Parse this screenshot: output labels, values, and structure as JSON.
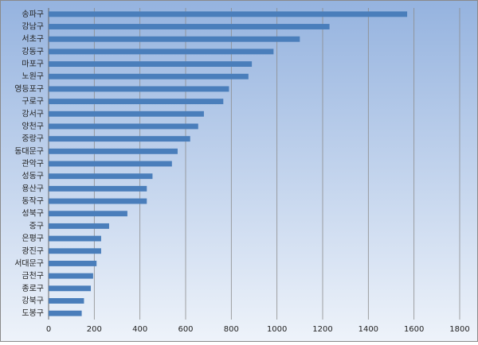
{
  "chart_data": {
    "type": "bar",
    "orientation": "horizontal",
    "categories": [
      "송파구",
      "강남구",
      "서초구",
      "강동구",
      "마포구",
      "노원구",
      "영등포구",
      "구로구",
      "강서구",
      "양천구",
      "중랑구",
      "동대문구",
      "관악구",
      "성동구",
      "용산구",
      "동작구",
      "성북구",
      "중구",
      "은평구",
      "광진구",
      "서대문구",
      "금천구",
      "종로구",
      "강북구",
      "도봉구"
    ],
    "values": [
      1570,
      1230,
      1100,
      985,
      890,
      875,
      790,
      765,
      680,
      655,
      620,
      565,
      540,
      455,
      430,
      430,
      345,
      265,
      230,
      230,
      210,
      195,
      185,
      155,
      145
    ],
    "color": "#4a7ebb",
    "xlim": [
      0,
      1800
    ],
    "xticks": [
      0,
      200,
      400,
      600,
      800,
      1000,
      1200,
      1400,
      1600,
      1800
    ],
    "grid": true
  }
}
